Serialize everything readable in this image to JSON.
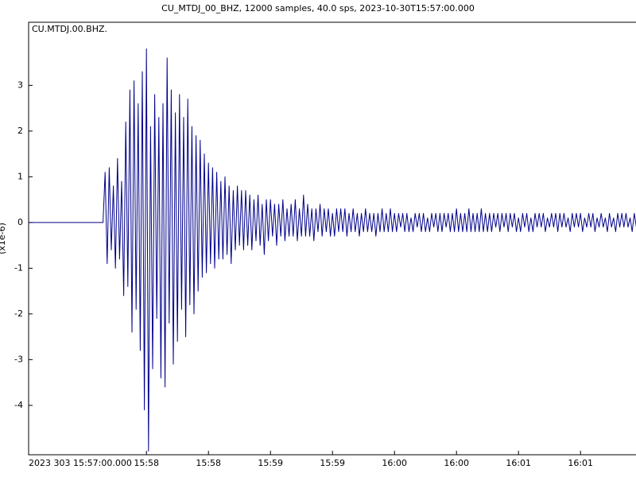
{
  "chart_data": {
    "type": "line",
    "title": "CU_MTDJ_00_BHZ, 12000 samples, 40.0 sps, 2023-10-30T15:57:00.000",
    "ylabel": "(x1e-6)",
    "x": [
      0,
      36,
      37,
      38,
      39,
      40,
      41,
      42,
      43,
      44,
      45,
      46,
      47,
      48,
      49,
      50,
      51,
      52,
      53,
      54,
      55,
      56,
      57,
      58,
      59,
      60,
      61,
      62,
      63,
      64,
      65,
      66,
      67,
      68,
      69,
      70,
      71,
      72,
      73,
      74,
      75,
      76,
      77,
      78,
      79,
      80,
      81,
      82,
      83,
      84,
      85,
      86,
      87,
      88,
      89,
      90,
      91,
      92,
      93,
      94,
      95,
      96,
      97,
      98,
      99,
      100,
      101,
      102,
      103,
      104,
      105,
      106,
      107,
      108,
      109,
      110,
      111,
      112,
      113,
      114,
      115,
      116,
      117,
      118,
      119,
      120,
      121,
      122,
      123,
      124,
      125,
      126,
      127,
      128,
      129,
      130,
      131,
      132,
      133,
      134,
      135,
      136,
      137,
      138,
      139,
      140,
      141,
      142,
      143,
      144,
      145,
      146,
      147,
      148,
      149,
      150,
      151,
      152,
      153,
      154,
      155,
      156,
      157,
      158,
      159,
      160,
      161,
      162,
      163,
      164,
      165,
      166,
      167,
      168,
      169,
      170,
      171,
      172,
      173,
      174,
      175,
      176,
      177,
      178,
      179,
      180,
      181,
      182,
      183,
      184,
      185,
      186,
      187,
      188,
      189,
      190,
      191,
      192,
      193,
      194,
      195,
      196,
      197,
      198,
      199,
      200,
      201,
      202,
      203,
      204,
      205,
      206,
      207,
      208,
      209,
      210,
      211,
      212,
      213,
      214,
      215,
      216,
      217,
      218,
      219,
      220,
      221,
      222,
      223,
      224,
      225,
      226,
      227,
      228,
      229,
      230,
      231,
      232,
      233,
      234,
      235,
      236,
      237,
      238,
      239,
      240,
      241,
      242,
      243,
      244,
      245,
      246,
      247,
      248,
      249,
      250,
      251,
      252,
      253,
      254,
      255,
      256,
      257,
      258,
      259,
      260,
      261,
      262,
      263,
      264,
      265,
      266,
      267,
      268,
      269,
      270,
      271,
      272,
      273,
      274,
      275,
      276,
      277,
      278,
      279,
      280,
      281,
      282,
      283,
      284,
      285,
      286,
      287,
      288,
      289,
      290,
      291,
      292,
      293,
      294
    ],
    "series": [
      {
        "name": "CU.MTDJ.00.BHZ.",
        "color": "#00008b",
        "values": [
          0,
          0,
          1.1,
          -0.9,
          1.2,
          -0.6,
          0.8,
          -1.0,
          1.4,
          -0.8,
          0.9,
          -1.6,
          2.2,
          -1.4,
          2.9,
          -2.4,
          3.1,
          -1.9,
          2.6,
          -2.8,
          3.3,
          -4.1,
          3.8,
          -5.0,
          2.1,
          -3.2,
          2.8,
          -2.1,
          2.3,
          -3.4,
          2.6,
          -3.6,
          3.6,
          -2.2,
          2.9,
          -3.1,
          2.4,
          -2.6,
          2.8,
          -1.9,
          2.3,
          -2.5,
          2.7,
          -1.8,
          2.1,
          -2.0,
          1.9,
          -1.5,
          1.8,
          -1.2,
          1.5,
          -1.1,
          1.3,
          -0.9,
          1.2,
          -1.0,
          1.1,
          -0.8,
          0.9,
          -0.8,
          1.0,
          -0.7,
          0.8,
          -0.9,
          0.7,
          -0.6,
          0.8,
          -0.5,
          0.7,
          -0.6,
          0.7,
          -0.5,
          0.6,
          -0.6,
          0.5,
          -0.4,
          0.6,
          -0.5,
          0.4,
          -0.7,
          0.5,
          -0.4,
          0.5,
          -0.3,
          0.4,
          -0.5,
          0.4,
          -0.3,
          0.5,
          -0.4,
          0.3,
          -0.3,
          0.4,
          -0.3,
          0.5,
          -0.4,
          0.3,
          -0.3,
          0.6,
          -0.3,
          0.4,
          -0.3,
          0.3,
          -0.4,
          0.3,
          -0.2,
          0.4,
          -0.3,
          0.3,
          -0.2,
          0.3,
          -0.3,
          0.2,
          -0.3,
          0.3,
          -0.2,
          0.3,
          -0.2,
          0.3,
          -0.3,
          0.2,
          -0.2,
          0.3,
          -0.2,
          0.2,
          -0.3,
          0.2,
          -0.2,
          0.3,
          -0.2,
          0.2,
          -0.2,
          0.2,
          -0.3,
          0.2,
          -0.2,
          0.3,
          -0.2,
          0.2,
          -0.2,
          0.3,
          -0.2,
          0.2,
          -0.2,
          0.2,
          -0.1,
          0.2,
          -0.2,
          0.2,
          -0.2,
          0.1,
          -0.2,
          0.2,
          -0.1,
          0.2,
          -0.2,
          0.2,
          -0.2,
          0.1,
          -0.2,
          0.2,
          -0.1,
          0.2,
          -0.2,
          0.2,
          -0.2,
          0.2,
          -0.1,
          0.2,
          -0.2,
          0.2,
          -0.2,
          0.3,
          -0.2,
          0.2,
          -0.2,
          0.2,
          -0.2,
          0.3,
          -0.2,
          0.2,
          -0.2,
          0.2,
          -0.2,
          0.3,
          -0.2,
          0.2,
          -0.2,
          0.2,
          -0.2,
          0.2,
          -0.1,
          0.2,
          -0.2,
          0.2,
          -0.1,
          0.2,
          -0.2,
          0.2,
          -0.1,
          0.2,
          -0.2,
          0.1,
          -0.2,
          0.2,
          -0.1,
          0.2,
          -0.2,
          0.1,
          -0.2,
          0.2,
          -0.1,
          0.2,
          -0.1,
          0.2,
          -0.2,
          0.1,
          -0.1,
          0.2,
          -0.1,
          0.2,
          -0.2,
          0.2,
          -0.1,
          0.2,
          -0.1,
          0.1,
          -0.2,
          0.2,
          -0.1,
          0.2,
          -0.1,
          0.2,
          -0.2,
          0.1,
          -0.1,
          0.2,
          -0.1,
          0.2,
          -0.2,
          0.1,
          -0.1,
          0.2,
          -0.1,
          0.1,
          -0.2,
          0.2,
          -0.1,
          0.1,
          -0.2,
          0.2,
          -0.1,
          0.2,
          -0.1,
          0.2,
          -0.1,
          0.1,
          -0.2,
          0.2,
          -0.1
        ]
      }
    ],
    "xlim": [
      0,
      294
    ],
    "xticks": [
      {
        "value": 0,
        "label": "2023 303 15:57:00.000"
      },
      {
        "value": 57,
        "label": "15:58"
      },
      {
        "value": 87,
        "label": "15:58"
      },
      {
        "value": 117,
        "label": "15:59"
      },
      {
        "value": 147,
        "label": "15:59"
      },
      {
        "value": 177,
        "label": "16:00"
      },
      {
        "value": 207,
        "label": "16:00"
      },
      {
        "value": 237,
        "label": "16:01"
      },
      {
        "value": 267,
        "label": "16:01"
      }
    ],
    "ylim": [
      -5.08,
      4.38
    ],
    "yticks": [
      -4,
      -3,
      -2,
      -1,
      0,
      1,
      2,
      3
    ],
    "grid": false
  }
}
